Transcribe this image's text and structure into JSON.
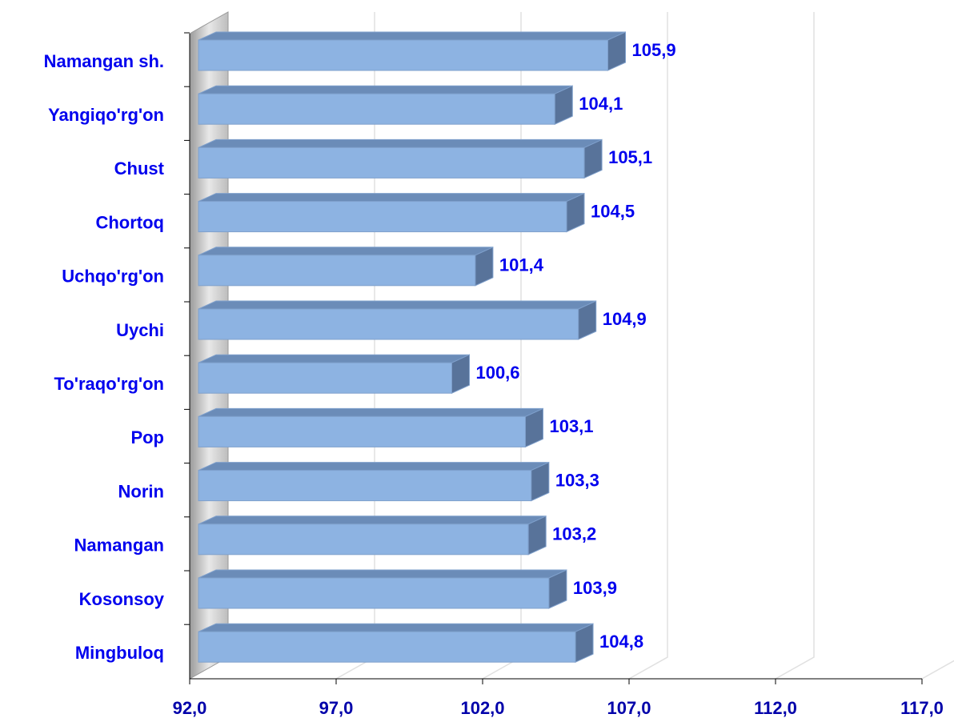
{
  "chart_data": {
    "type": "bar",
    "orientation": "horizontal",
    "categories": [
      "Namangan sh.",
      "Yangiqo'rg'on",
      "Chust",
      "Chortoq",
      "Uchqo'rg'on",
      "Uychi",
      "To'raqo'rg'on",
      "Pop",
      "Norin",
      "Namangan",
      "Kosonsoy",
      "Mingbuloq"
    ],
    "values": [
      105.9,
      104.1,
      105.1,
      104.5,
      101.4,
      104.9,
      100.6,
      103.1,
      103.3,
      103.2,
      103.9,
      104.8
    ],
    "value_labels": [
      "105,9",
      "104,1",
      "105,1",
      "104,5",
      "101,4",
      "104,9",
      "100,6",
      "103,1",
      "103,3",
      "103,2",
      "103,9",
      "104,8"
    ],
    "color": "#8db3e2",
    "xlim": [
      92,
      117
    ],
    "xticks": [
      {
        "value": 92,
        "label": "92,0"
      },
      {
        "value": 97,
        "label": "97,0"
      },
      {
        "value": 102,
        "label": "102,0"
      },
      {
        "value": 107,
        "label": "107,0"
      },
      {
        "value": 112,
        "label": "112,0"
      },
      {
        "value": 117,
        "label": "117,0"
      }
    ],
    "grid": true
  }
}
